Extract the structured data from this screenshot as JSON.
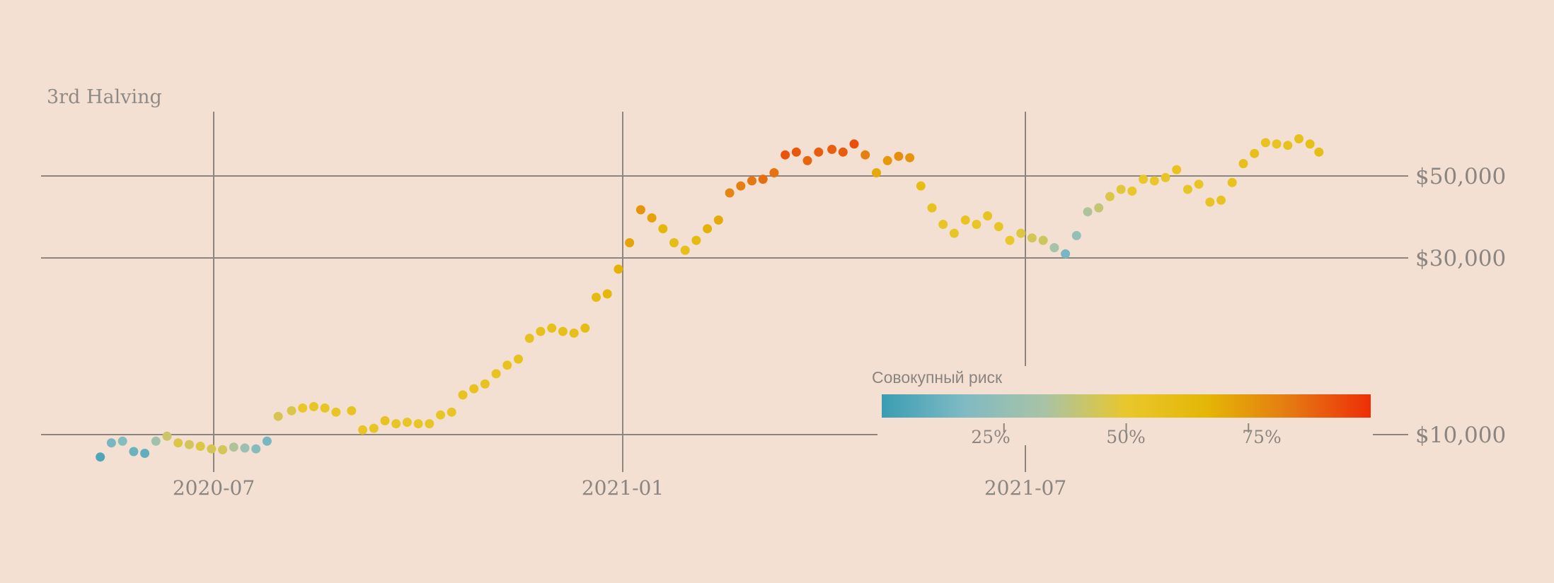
{
  "chart_data": {
    "type": "scatter",
    "title": "3rd Halving",
    "xlabel": "",
    "ylabel": "",
    "y_scale": "log",
    "grid": true,
    "x_ticks": [
      "2020-07",
      "2021-01",
      "2021-07"
    ],
    "x_range": [
      "2020-05-11",
      "2021-11-10"
    ],
    "y_ticks": [
      {
        "value": 10000,
        "label": "$10,000"
      },
      {
        "value": 30000,
        "label": "$30,000"
      },
      {
        "value": 50000,
        "label": "$50,000"
      }
    ],
    "y_range": [
      8000,
      80000
    ],
    "color_scale": {
      "title": "Совокупный риск",
      "ticks": [
        {
          "value": 0.25,
          "label": "25%"
        },
        {
          "value": 0.5,
          "label": "50%"
        },
        {
          "value": 0.75,
          "label": "75%"
        }
      ],
      "stops": [
        "#3a9db2",
        "#7fbac3",
        "#a9c3a6",
        "#e9c72c",
        "#e4b606",
        "#e57a12",
        "#ee2e08"
      ],
      "legend_position": "bottom-right"
    },
    "points": [
      [
        "2020-05-11",
        8700,
        0.05
      ],
      [
        "2020-05-16",
        9500,
        0.15
      ],
      [
        "2020-05-21",
        9600,
        0.2
      ],
      [
        "2020-05-26",
        9000,
        0.12
      ],
      [
        "2020-05-31",
        8900,
        0.1
      ],
      [
        "2020-06-05",
        9600,
        0.3
      ],
      [
        "2020-06-10",
        9900,
        0.42
      ],
      [
        "2020-06-15",
        9500,
        0.46
      ],
      [
        "2020-06-20",
        9400,
        0.44
      ],
      [
        "2020-06-25",
        9300,
        0.47
      ],
      [
        "2020-06-30",
        9150,
        0.45
      ],
      [
        "2020-07-05",
        9100,
        0.44
      ],
      [
        "2020-07-10",
        9250,
        0.35
      ],
      [
        "2020-07-15",
        9200,
        0.27
      ],
      [
        "2020-07-20",
        9150,
        0.2
      ],
      [
        "2020-07-25",
        9600,
        0.15
      ],
      [
        "2020-07-30",
        11200,
        0.45
      ],
      [
        "2020-08-05",
        11600,
        0.46
      ],
      [
        "2020-08-10",
        11800,
        0.5
      ],
      [
        "2020-08-15",
        11900,
        0.52
      ],
      [
        "2020-08-20",
        11800,
        0.53
      ],
      [
        "2020-08-25",
        11500,
        0.52
      ],
      [
        "2020-09-01",
        11600,
        0.54
      ],
      [
        "2020-09-06",
        10300,
        0.53
      ],
      [
        "2020-09-11",
        10400,
        0.52
      ],
      [
        "2020-09-16",
        10900,
        0.55
      ],
      [
        "2020-09-21",
        10700,
        0.52
      ],
      [
        "2020-09-26",
        10800,
        0.53
      ],
      [
        "2020-10-01",
        10700,
        0.53
      ],
      [
        "2020-10-06",
        10700,
        0.52
      ],
      [
        "2020-10-11",
        11300,
        0.53
      ],
      [
        "2020-10-16",
        11500,
        0.53
      ],
      [
        "2020-10-21",
        12800,
        0.55
      ],
      [
        "2020-10-26",
        13300,
        0.55
      ],
      [
        "2020-10-31",
        13700,
        0.55
      ],
      [
        "2020-11-05",
        14600,
        0.55
      ],
      [
        "2020-11-10",
        15400,
        0.55
      ],
      [
        "2020-11-15",
        16000,
        0.56
      ],
      [
        "2020-11-20",
        18200,
        0.56
      ],
      [
        "2020-11-25",
        19000,
        0.57
      ],
      [
        "2020-11-30",
        19400,
        0.57
      ],
      [
        "2020-12-05",
        19000,
        0.58
      ],
      [
        "2020-12-10",
        18800,
        0.58
      ],
      [
        "2020-12-15",
        19400,
        0.6
      ],
      [
        "2020-12-20",
        23500,
        0.62
      ],
      [
        "2020-12-25",
        24000,
        0.66
      ],
      [
        "2020-12-30",
        28000,
        0.68
      ],
      [
        "2021-01-04",
        33000,
        0.72
      ],
      [
        "2021-01-09",
        40500,
        0.76
      ],
      [
        "2021-01-14",
        38500,
        0.72
      ],
      [
        "2021-01-19",
        36000,
        0.66
      ],
      [
        "2021-01-24",
        33000,
        0.6
      ],
      [
        "2021-01-29",
        31500,
        0.58
      ],
      [
        "2021-02-03",
        33500,
        0.62
      ],
      [
        "2021-02-08",
        36000,
        0.68
      ],
      [
        "2021-02-13",
        38000,
        0.7
      ],
      [
        "2021-02-18",
        45000,
        0.8
      ],
      [
        "2021-02-23",
        47000,
        0.82
      ],
      [
        "2021-02-28",
        48500,
        0.84
      ],
      [
        "2021-03-05",
        49000,
        0.86
      ],
      [
        "2021-03-10",
        51000,
        0.85
      ],
      [
        "2021-03-15",
        57000,
        0.92
      ],
      [
        "2021-03-20",
        58000,
        0.91
      ],
      [
        "2021-03-25",
        55000,
        0.88
      ],
      [
        "2021-03-30",
        58000,
        0.9
      ],
      [
        "2021-04-05",
        59000,
        0.89
      ],
      [
        "2021-04-10",
        58000,
        0.9
      ],
      [
        "2021-04-15",
        61000,
        0.93
      ],
      [
        "2021-04-20",
        57000,
        0.82
      ],
      [
        "2021-04-25",
        51000,
        0.7
      ],
      [
        "2021-04-30",
        55000,
        0.75
      ],
      [
        "2021-05-05",
        56500,
        0.78
      ],
      [
        "2021-05-10",
        56000,
        0.76
      ],
      [
        "2021-05-15",
        47000,
        0.6
      ],
      [
        "2021-05-20",
        41000,
        0.56
      ],
      [
        "2021-05-25",
        37000,
        0.53
      ],
      [
        "2021-05-30",
        35000,
        0.52
      ],
      [
        "2021-06-04",
        38000,
        0.54
      ],
      [
        "2021-06-09",
        37000,
        0.53
      ],
      [
        "2021-06-14",
        39000,
        0.54
      ],
      [
        "2021-06-19",
        36500,
        0.52
      ],
      [
        "2021-06-24",
        33500,
        0.5
      ],
      [
        "2021-06-29",
        35000,
        0.47
      ],
      [
        "2021-07-04",
        34000,
        0.44
      ],
      [
        "2021-07-09",
        33500,
        0.43
      ],
      [
        "2021-07-14",
        32000,
        0.32
      ],
      [
        "2021-07-19",
        30800,
        0.15
      ],
      [
        "2021-07-24",
        34500,
        0.25
      ],
      [
        "2021-07-29",
        40000,
        0.35
      ],
      [
        "2021-08-03",
        41000,
        0.4
      ],
      [
        "2021-08-08",
        44000,
        0.46
      ],
      [
        "2021-08-13",
        46000,
        0.48
      ],
      [
        "2021-08-18",
        45500,
        0.5
      ],
      [
        "2021-08-23",
        49000,
        0.5
      ],
      [
        "2021-08-28",
        48500,
        0.5
      ],
      [
        "2021-09-02",
        49500,
        0.52
      ],
      [
        "2021-09-07",
        52000,
        0.55
      ],
      [
        "2021-09-12",
        46000,
        0.52
      ],
      [
        "2021-09-17",
        47500,
        0.53
      ],
      [
        "2021-09-22",
        42500,
        0.54
      ],
      [
        "2021-09-27",
        43000,
        0.55
      ],
      [
        "2021-10-02",
        48000,
        0.56
      ],
      [
        "2021-10-07",
        54000,
        0.57
      ],
      [
        "2021-10-12",
        57500,
        0.58
      ],
      [
        "2021-10-17",
        61500,
        0.55
      ],
      [
        "2021-10-22",
        61000,
        0.54
      ],
      [
        "2021-10-27",
        60500,
        0.56
      ],
      [
        "2021-11-01",
        63000,
        0.57
      ],
      [
        "2021-11-06",
        61000,
        0.58
      ],
      [
        "2021-11-10",
        58000,
        0.6
      ]
    ]
  }
}
